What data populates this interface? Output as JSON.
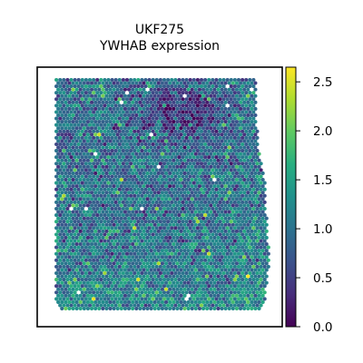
{
  "chart_data": {
    "type": "scatter",
    "title": "UKF275",
    "subtitle": "YWHAB expression",
    "xlabel": "",
    "ylabel": "",
    "grid": false,
    "colormap": "viridis",
    "colorbar": {
      "range": [
        0.0,
        2.65
      ],
      "ticks": [
        0.0,
        0.5,
        1.0,
        1.5,
        2.0,
        2.5
      ],
      "tick_labels": [
        "0.0",
        "0.5",
        "1.0",
        "1.5",
        "2.0",
        "2.5"
      ]
    },
    "colors": {
      "viridis_low": "#440154",
      "viridis_mid": "#21918c",
      "viridis_high": "#fde725",
      "frame": "#000000",
      "background": "#ffffff"
    }
  }
}
